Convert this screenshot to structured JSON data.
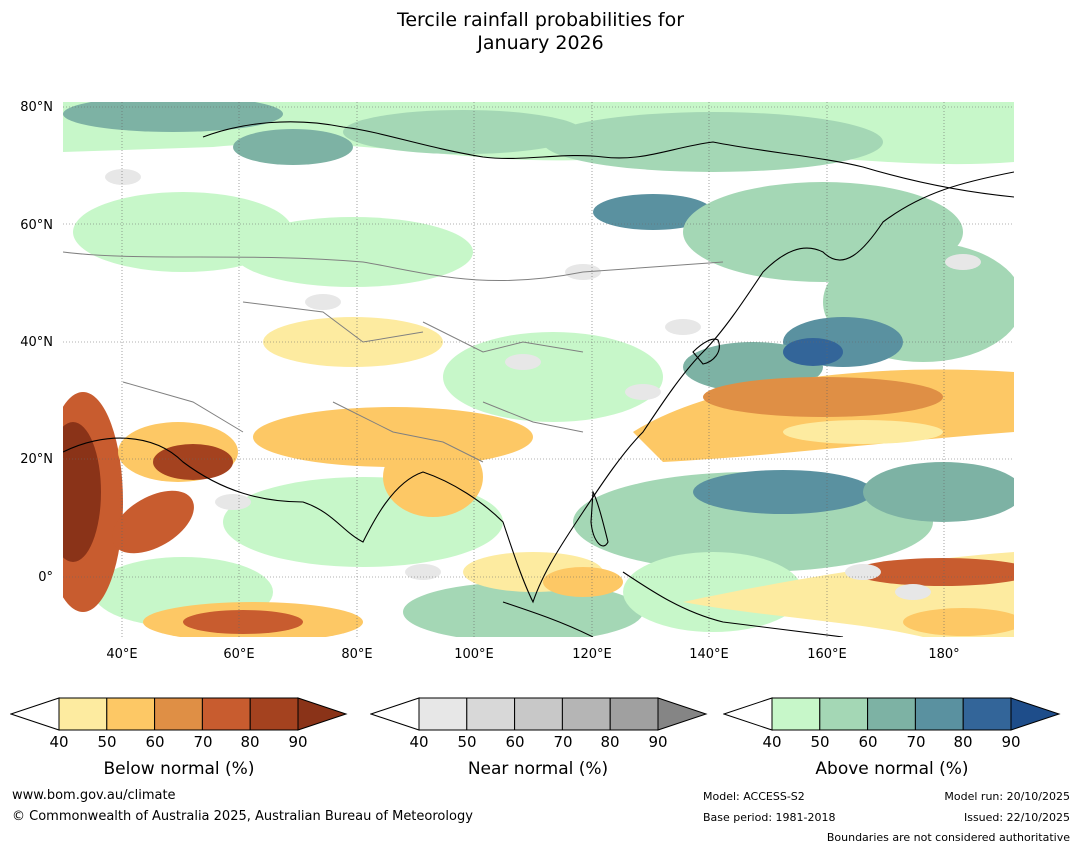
{
  "title": {
    "line1": "Tercile rainfall probabilities for",
    "line2": "January 2026"
  },
  "map": {
    "lat_labels": [
      "80°N",
      "60°N",
      "40°N",
      "20°N",
      "0°"
    ],
    "lon_labels": [
      "40°E",
      "60°E",
      "80°E",
      "100°E",
      "120°E",
      "140°E",
      "160°E",
      "180°"
    ],
    "colors": {
      "below": [
        "#fdeba0",
        "#fdc865",
        "#df8f45",
        "#c85c2f",
        "#a4421f",
        "#8a3318"
      ],
      "near": [
        "#e7e7e7",
        "#d8d8d8",
        "#c8c8c8",
        "#b5b5b5",
        "#a0a0a0",
        "#858585"
      ],
      "above": [
        "#c7f7c9",
        "#a4d7b5",
        "#7db2a4",
        "#5a91a0",
        "#336599",
        "#1e4d8a"
      ],
      "coastline": "#000000",
      "borders": "#808080"
    }
  },
  "legends": [
    {
      "key": "below",
      "title": "Below normal (%)",
      "ticks": [
        "40",
        "50",
        "60",
        "70",
        "80",
        "90"
      ],
      "colors": [
        "#fdeba0",
        "#fdc865",
        "#df8f45",
        "#c85c2f",
        "#a4421f",
        "#8a3318"
      ]
    },
    {
      "key": "near",
      "title": "Near normal (%)",
      "ticks": [
        "40",
        "50",
        "60",
        "70",
        "80",
        "90"
      ],
      "colors": [
        "#e7e7e7",
        "#d8d8d8",
        "#c8c8c8",
        "#b5b5b5",
        "#a0a0a0",
        "#858585"
      ]
    },
    {
      "key": "above",
      "title": "Above normal (%)",
      "ticks": [
        "40",
        "50",
        "60",
        "70",
        "80",
        "90"
      ],
      "colors": [
        "#c7f7c9",
        "#a4d7b5",
        "#7db2a4",
        "#5a91a0",
        "#336599",
        "#1e4d8a"
      ]
    }
  ],
  "footer": {
    "url": "www.bom.gov.au/climate",
    "copyright": "© Commonwealth of Australia 2025, Australian Bureau of Meteorology",
    "model": "Model: ACCESS-S2",
    "base_period": "Base period: 1981-2018",
    "model_run": "Model run: 20/10/2025",
    "issued": "Issued: 22/10/2025",
    "disclaimer": "Boundaries are not considered authoritative"
  }
}
